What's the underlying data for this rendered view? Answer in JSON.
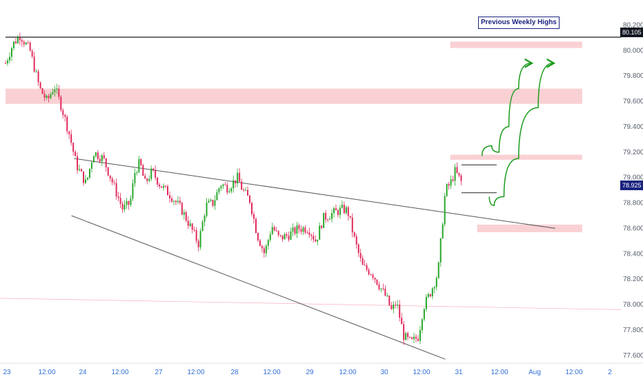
{
  "colors": {
    "up": "#26a629",
    "down": "#e0285a",
    "zone": "#f8c9cd",
    "trendline": "#555555",
    "weekly_line": "#000000",
    "arrow": "#1a9a1a",
    "current_price_tag": "#1a237e"
  },
  "annotations": {
    "previous_weekly_highs": "Previous Weekly Highs",
    "last_price": "78.925",
    "weekly_high_price": "80.105"
  },
  "chart_data": {
    "type": "candlestick",
    "title": "",
    "xlabel": "",
    "ylabel": "",
    "ylim": [
      77.55,
      80.3
    ],
    "y_ticks": [
      "80.200",
      "80.000",
      "79.800",
      "79.600",
      "79.400",
      "79.200",
      "79.000",
      "78.800",
      "78.600",
      "78.400",
      "78.200",
      "78.000",
      "77.800",
      "77.600"
    ],
    "x_ticks": [
      "23",
      "12:00",
      "24",
      "12:00",
      "27",
      "12:00",
      "28",
      "12:00",
      "29",
      "12:00",
      "30",
      "12:00",
      "31",
      "12:00",
      "Aug",
      "12:00",
      "2"
    ],
    "grid": false,
    "path_points": [
      [
        0,
        79.9
      ],
      [
        0.15,
        80.05
      ],
      [
        0.3,
        80.12
      ],
      [
        0.5,
        80.0
      ],
      [
        0.7,
        79.7
      ],
      [
        0.85,
        79.6
      ],
      [
        1.0,
        79.72
      ],
      [
        1.15,
        79.55
      ],
      [
        1.3,
        79.35
      ],
      [
        1.45,
        79.1
      ],
      [
        1.65,
        78.95
      ],
      [
        1.8,
        79.2
      ],
      [
        2.0,
        79.15
      ],
      [
        2.2,
        78.95
      ],
      [
        2.4,
        78.75
      ],
      [
        2.55,
        78.8
      ],
      [
        2.65,
        79.05
      ],
      [
        2.75,
        79.12
      ],
      [
        2.85,
        78.95
      ],
      [
        3.0,
        79.05
      ],
      [
        3.15,
        78.95
      ],
      [
        3.4,
        78.85
      ],
      [
        3.6,
        78.75
      ],
      [
        3.8,
        78.6
      ],
      [
        3.95,
        78.48
      ],
      [
        4.1,
        78.78
      ],
      [
        4.25,
        78.8
      ],
      [
        4.4,
        78.95
      ],
      [
        4.55,
        78.92
      ],
      [
        4.75,
        79.0
      ],
      [
        4.85,
        78.9
      ],
      [
        5.0,
        78.82
      ],
      [
        5.15,
        78.55
      ],
      [
        5.3,
        78.4
      ],
      [
        5.45,
        78.62
      ],
      [
        5.6,
        78.52
      ],
      [
        5.8,
        78.55
      ],
      [
        6.0,
        78.6
      ],
      [
        6.2,
        78.6
      ],
      [
        6.35,
        78.5
      ],
      [
        6.5,
        78.68
      ],
      [
        6.7,
        78.72
      ],
      [
        6.9,
        78.75
      ],
      [
        7.0,
        78.74
      ],
      [
        7.15,
        78.5
      ],
      [
        7.3,
        78.3
      ],
      [
        7.5,
        78.25
      ],
      [
        7.65,
        78.15
      ],
      [
        7.8,
        78.05
      ],
      [
        7.9,
        77.95
      ],
      [
        8.0,
        78.02
      ],
      [
        8.15,
        77.75
      ],
      [
        8.3,
        77.7
      ],
      [
        8.45,
        77.75
      ],
      [
        8.55,
        77.98
      ],
      [
        8.7,
        78.1
      ],
      [
        8.85,
        78.25
      ],
      [
        9.0,
        78.9
      ],
      [
        9.1,
        78.95
      ],
      [
        9.2,
        79.05
      ],
      [
        9.35,
        78.95
      ]
    ],
    "horizontal_levels": [
      {
        "price": 80.105,
        "from_x": 0.0,
        "to_x": 11.8
      }
    ],
    "zones": [
      {
        "from_price": 80.07,
        "to_price": 80.02,
        "from_x": 9.1,
        "to_x": 11.8
      },
      {
        "from_price": 79.7,
        "to_price": 79.58,
        "from_x": 0.0,
        "to_x": 11.8
      },
      {
        "from_price": 79.18,
        "to_price": 79.14,
        "from_x": 9.1,
        "to_x": 11.8
      },
      {
        "from_price": 78.63,
        "to_price": 78.57,
        "from_x": 9.65,
        "to_x": 11.8
      }
    ],
    "trendlines": [
      {
        "x1": 1.4,
        "y1": 79.15,
        "x2": 11.25,
        "y2": 78.6
      },
      {
        "x1": 1.35,
        "y1": 78.7,
        "x2": 9.0,
        "y2": 77.57
      }
    ],
    "range_box": {
      "from_x": 9.33,
      "to_x": 10.05,
      "top": 79.1,
      "bottom": 78.88
    },
    "projected_paths": [
      {
        "points": [
          [
            9.75,
            79.17
          ],
          [
            9.95,
            79.25
          ],
          [
            10.1,
            79.2
          ],
          [
            10.3,
            79.4
          ],
          [
            10.5,
            79.7
          ],
          [
            10.75,
            79.9
          ]
        ]
      },
      {
        "points": [
          [
            9.9,
            78.85
          ],
          [
            10.0,
            78.78
          ],
          [
            10.2,
            78.85
          ],
          [
            10.5,
            79.15
          ],
          [
            10.9,
            79.55
          ],
          [
            11.2,
            79.9
          ]
        ]
      }
    ]
  }
}
